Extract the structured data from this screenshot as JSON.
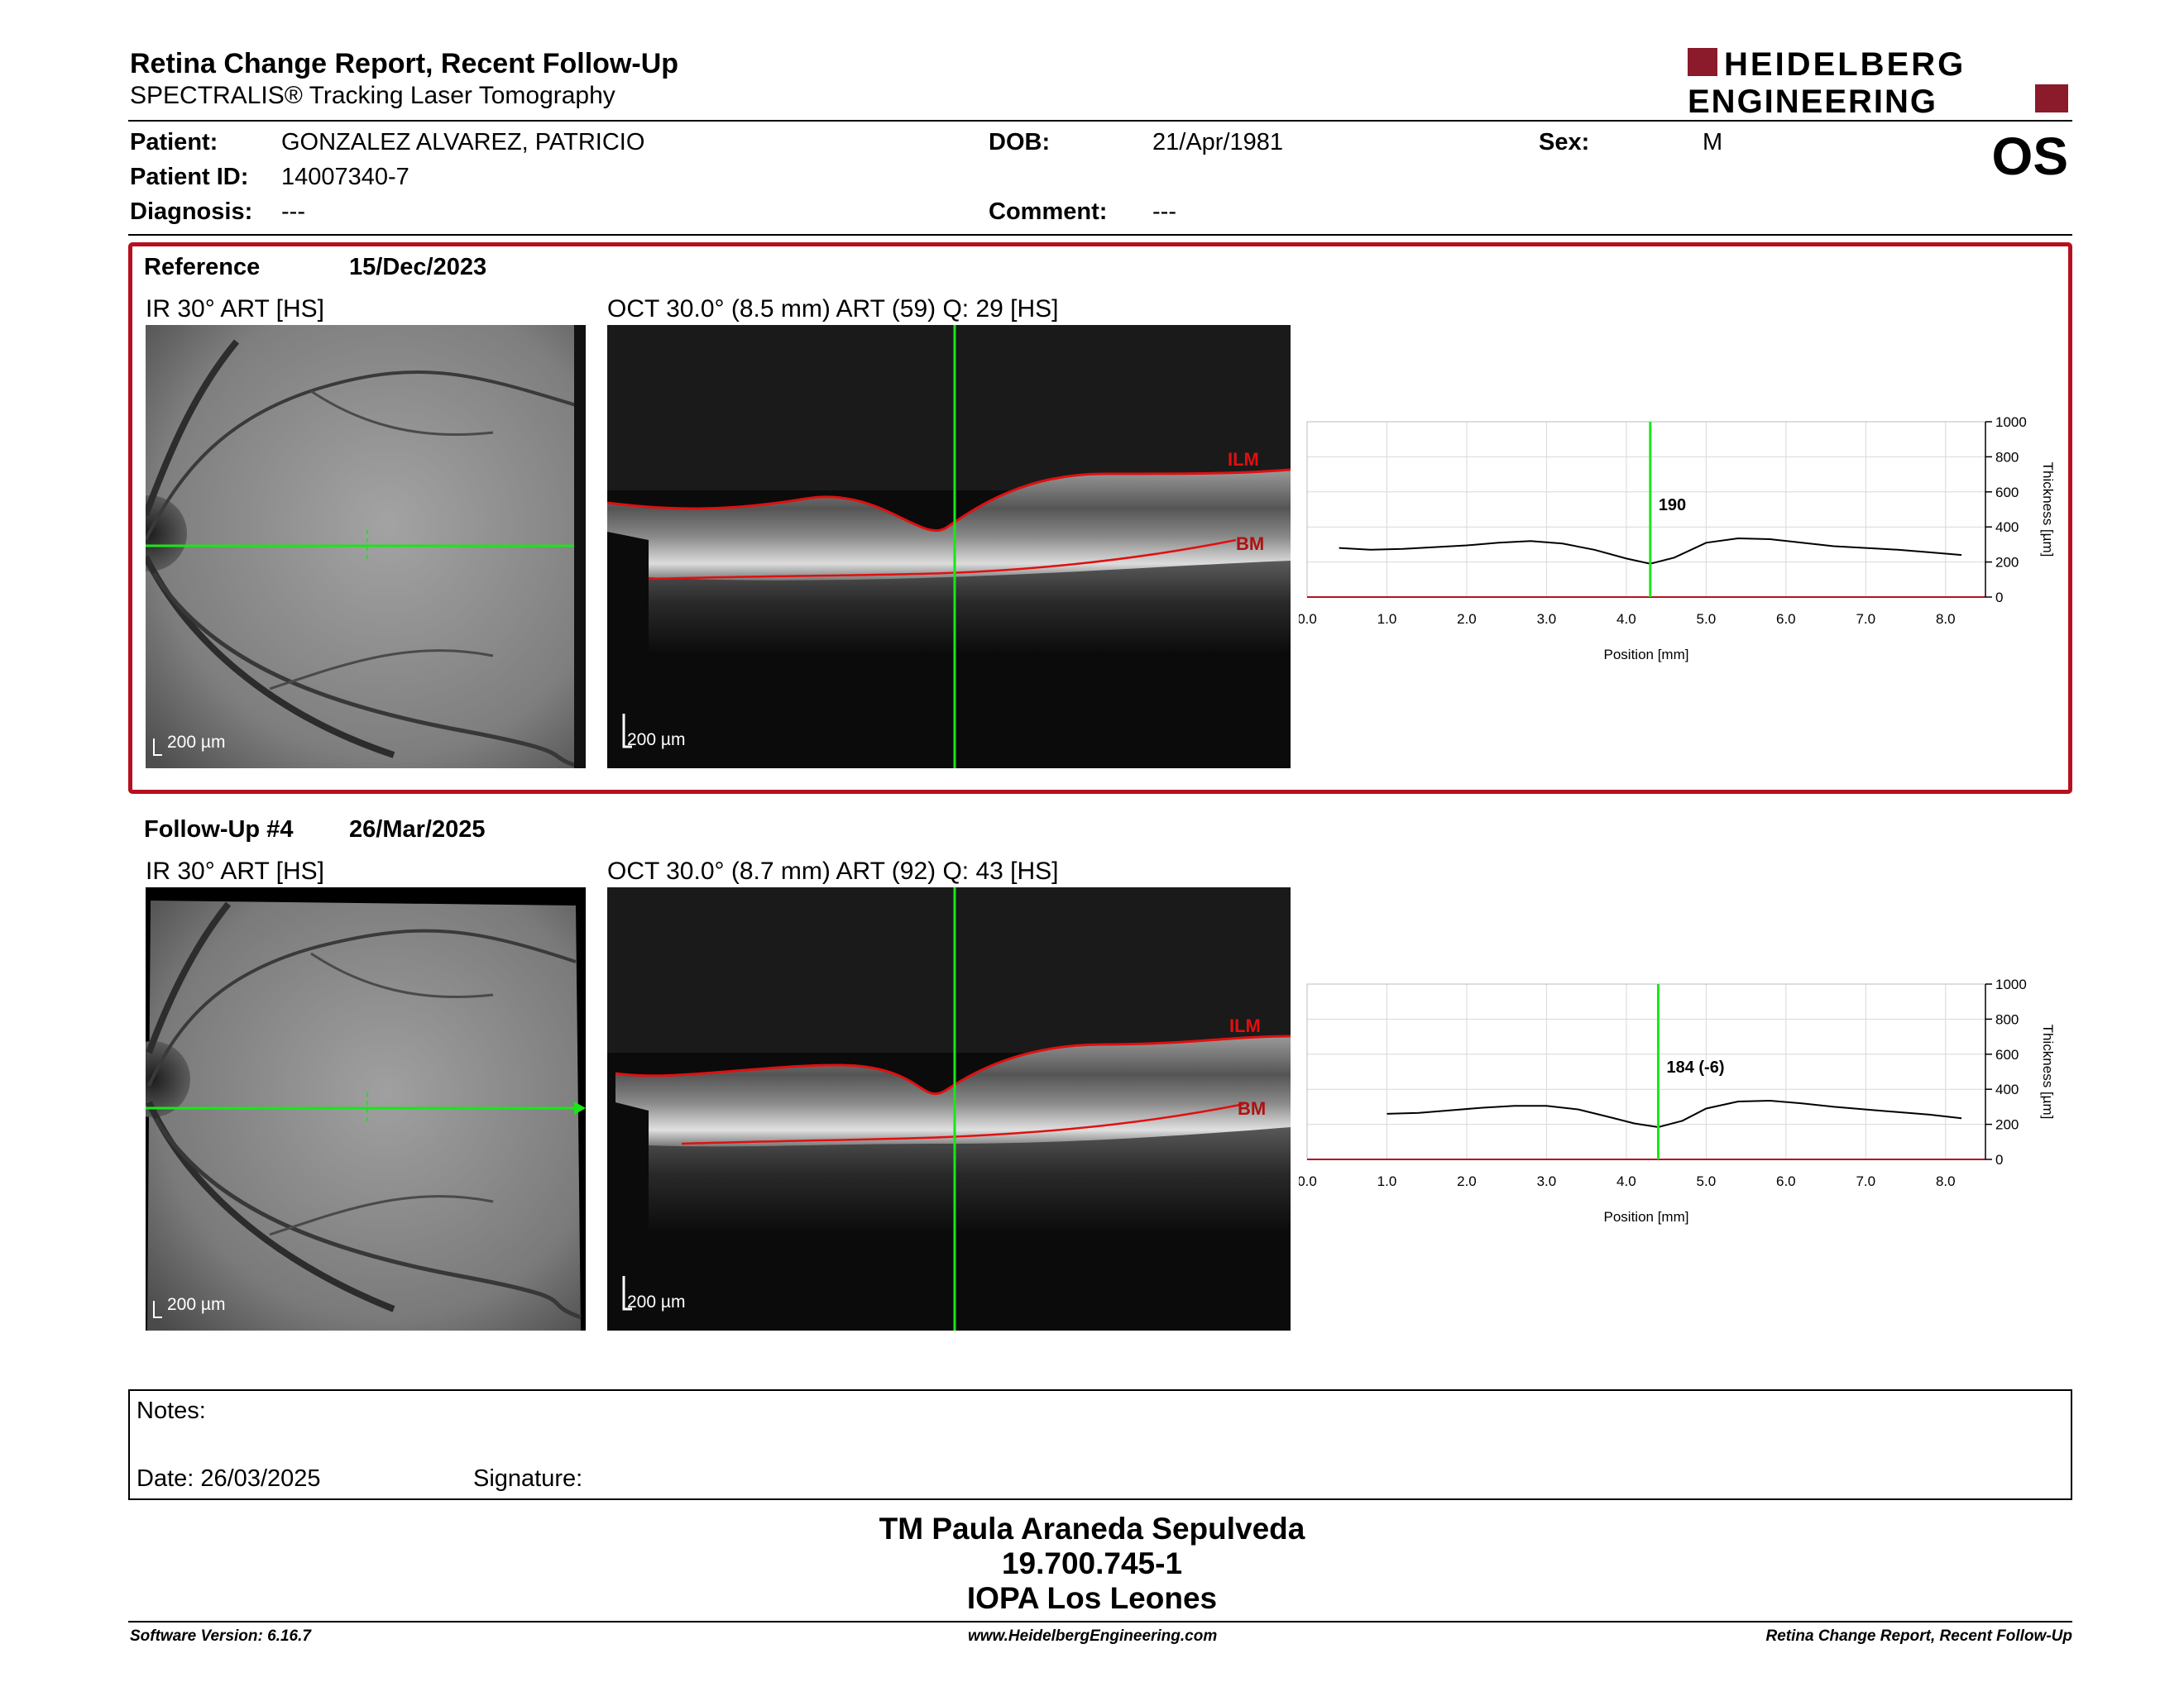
{
  "header": {
    "title": "Retina Change Report, Recent Follow-Up",
    "subtitle": "SPECTRALIS® Tracking Laser Tomography",
    "logo_line1": "HEIDELBERG",
    "logo_line2": "ENGINEERING",
    "eye": "OS",
    "brand_color": "#8b1a2b"
  },
  "patient": {
    "name_label": "Patient:",
    "name": "GONZALEZ ALVAREZ, PATRICIO",
    "id_label": "Patient ID:",
    "id": "14007340-7",
    "diagnosis_label": "Diagnosis:",
    "diagnosis": "---",
    "dob_label": "DOB:",
    "dob": "21/Apr/1981",
    "comment_label": "Comment:",
    "comment": "---",
    "sex_label": "Sex:",
    "sex": "M"
  },
  "reference": {
    "label": "Reference",
    "date": "15/Dec/2023",
    "ir_caption": "IR 30° ART [HS]",
    "oct_caption": "OCT 30.0° (8.5 mm) ART (59) Q: 29 [HS]",
    "ir_scale": "200 µm",
    "oct_scale": "200 µm",
    "ilm_label": "ILM",
    "bm_label": "BM",
    "border_color": "#b5101f"
  },
  "followup": {
    "label": "Follow-Up #4",
    "date": "26/Mar/2025",
    "ir_caption": "IR 30° ART [HS]",
    "oct_caption": "OCT 30.0° (8.7 mm) ART (92) Q: 43 [HS]",
    "ir_scale": "200 µm",
    "oct_scale": "200 µm",
    "ilm_label": "ILM",
    "bm_label": "BM"
  },
  "chart_data": [
    {
      "type": "line",
      "xlabel": "Position [mm]",
      "ylabel": "Thickness [µm]",
      "xlim": [
        0.0,
        8.5
      ],
      "ylim": [
        0,
        1000
      ],
      "x_ticks": [
        "0.0",
        "1.0",
        "2.0",
        "3.0",
        "4.0",
        "5.0",
        "6.0",
        "7.0",
        "8.0"
      ],
      "y_ticks": [
        "0",
        "200",
        "400",
        "600",
        "800",
        "1000"
      ],
      "grid": true,
      "marker_x": 4.3,
      "marker_label": "190",
      "series": [
        {
          "x": [
            0.4,
            0.8,
            1.2,
            1.6,
            2.0,
            2.4,
            2.8,
            3.2,
            3.6,
            4.0,
            4.3,
            4.6,
            5.0,
            5.4,
            5.8,
            6.2,
            6.6,
            7.0,
            7.4,
            7.8,
            8.2
          ],
          "values": [
            280,
            270,
            275,
            285,
            295,
            310,
            320,
            305,
            270,
            220,
            190,
            225,
            310,
            335,
            330,
            310,
            290,
            280,
            270,
            255,
            240
          ]
        }
      ]
    },
    {
      "type": "line",
      "xlabel": "Position [mm]",
      "ylabel": "Thickness [µm]",
      "xlim": [
        0.0,
        8.5
      ],
      "ylim": [
        0,
        1000
      ],
      "x_ticks": [
        "0.0",
        "1.0",
        "2.0",
        "3.0",
        "4.0",
        "5.0",
        "6.0",
        "7.0",
        "8.0"
      ],
      "y_ticks": [
        "0",
        "200",
        "400",
        "600",
        "800",
        "1000"
      ],
      "grid": true,
      "marker_x": 4.4,
      "marker_label": "184 (-6)",
      "series": [
        {
          "x": [
            1.0,
            1.4,
            1.8,
            2.2,
            2.6,
            3.0,
            3.4,
            3.8,
            4.1,
            4.4,
            4.7,
            5.0,
            5.4,
            5.8,
            6.2,
            6.6,
            7.0,
            7.4,
            7.8,
            8.2
          ],
          "values": [
            260,
            265,
            280,
            295,
            305,
            305,
            285,
            240,
            205,
            184,
            220,
            290,
            330,
            335,
            320,
            300,
            285,
            270,
            255,
            235
          ]
        }
      ]
    }
  ],
  "notes": {
    "notes_label": "Notes:",
    "date_label": "Date: 26/03/2025",
    "signature_label": "Signature:"
  },
  "footer": {
    "line1": "TM Paula Araneda Sepulveda",
    "line2": "19.700.745-1",
    "line3": "IOPA Los Leones",
    "software": "Software Version: 6.16.7",
    "website": "www.HeidelbergEngineering.com",
    "report": "Retina Change Report, Recent Follow-Up"
  }
}
